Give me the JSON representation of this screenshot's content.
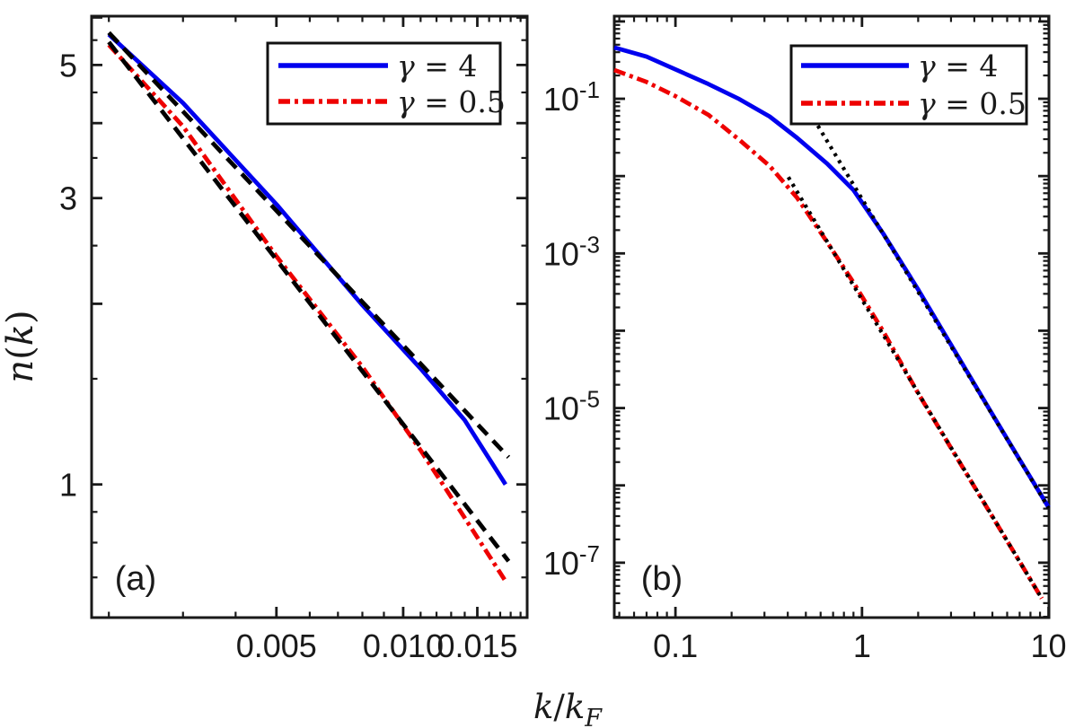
{
  "figure": {
    "xlabel": "k/k_F",
    "background": "#ffffff",
    "axis_color": "#191919",
    "text_color": "#1a1a1a"
  },
  "legend": {
    "entries": [
      {
        "label": "γ = 4",
        "series": "gamma-4",
        "color": "#0000ee",
        "style": "solid"
      },
      {
        "label": "γ = 0.5",
        "series": "gamma-0.5",
        "color": "#ee0000",
        "style": "dashdot"
      }
    ]
  },
  "chart_data": [
    {
      "type": "line",
      "panel_label": "(a)",
      "ylabel": "n(k)",
      "xscale": "log",
      "yscale": "log",
      "xlim": [
        0.00182,
        0.0197
      ],
      "ylim": [
        0.6,
        6.03
      ],
      "grid": false,
      "legend_position": "top-right-inside",
      "xticks_major": [
        0.005,
        0.01,
        0.015
      ],
      "xtick_labels": [
        "0.005",
        "0.010",
        "0.015"
      ],
      "xticks_minor": [
        0.002,
        0.003,
        0.004,
        0.006,
        0.007,
        0.008,
        0.009,
        0.011,
        0.012,
        0.013,
        0.014,
        0.016,
        0.017,
        0.018,
        0.019
      ],
      "yticks_labeled": [
        {
          "v": 1,
          "label": "1"
        },
        {
          "v": 3,
          "label": "3"
        },
        {
          "v": 5,
          "label": "5"
        }
      ],
      "yticks_unlabeled": [
        2,
        4,
        6
      ],
      "yticks_minor": [
        0.7,
        0.8,
        0.9,
        1.5,
        2.5,
        3.5,
        4.5,
        5.5
      ],
      "series": [
        {
          "name": "gamma-4",
          "color": "#0000ee",
          "style": "solid",
          "width": 4.8,
          "x": [
            0.002,
            0.003,
            0.005,
            0.008,
            0.011,
            0.014,
            0.0175
          ],
          "y": [
            5.62,
            4.32,
            2.93,
            1.99,
            1.56,
            1.28,
            1.0
          ]
        },
        {
          "name": "gamma-0.5",
          "color": "#ee0000",
          "style": "dashdot",
          "width": 4.8,
          "x": [
            0.002,
            0.003,
            0.005,
            0.008,
            0.011,
            0.014,
            0.0175
          ],
          "y": [
            5.4,
            3.95,
            2.4,
            1.57,
            1.14,
            0.88,
            0.69
          ]
        },
        {
          "name": "asymptote-gamma-4",
          "color": "#000000",
          "style": "dashed",
          "width": 4.8,
          "x": [
            0.002,
            0.0178
          ],
          "y": [
            5.66,
            1.11
          ]
        },
        {
          "name": "asymptote-gamma-0.5",
          "color": "#000000",
          "style": "dashed",
          "width": 4.8,
          "x": [
            0.002,
            0.0178
          ],
          "y": [
            5.46,
            0.745
          ]
        }
      ]
    },
    {
      "type": "line",
      "panel_label": "(b)",
      "ylabel": "",
      "xscale": "log",
      "yscale": "log",
      "xlim": [
        0.047,
        10.05
      ],
      "ylim": [
        1.95e-08,
        1.17
      ],
      "grid": false,
      "legend_position": "top-right-inside",
      "xticks_major": [
        0.1,
        1,
        10
      ],
      "xtick_labels": [
        "0.1",
        "1",
        "10"
      ],
      "xticks_minor": [
        0.05,
        0.06,
        0.07,
        0.08,
        0.09,
        0.2,
        0.3,
        0.4,
        0.5,
        0.6,
        0.7,
        0.8,
        0.9,
        2,
        3,
        4,
        5,
        6,
        7,
        8,
        9
      ],
      "yticks_labeled": [
        {
          "v": 0.1,
          "base": "10",
          "sup": "-1"
        },
        {
          "v": 0.001,
          "base": "10",
          "sup": "-3"
        },
        {
          "v": 1e-05,
          "base": "10",
          "sup": "-5"
        },
        {
          "v": 1e-07,
          "base": "10",
          "sup": "-7"
        }
      ],
      "yticks_unlabeled": [
        1,
        0.01,
        0.0001,
        1e-06
      ],
      "yticks_minor_decades": [
        -8,
        -1
      ],
      "series": [
        {
          "name": "gamma-4",
          "color": "#0000ee",
          "style": "solid",
          "width": 4.8,
          "x": [
            0.047,
            0.07,
            0.1,
            0.15,
            0.22,
            0.32,
            0.45,
            0.65,
            0.9,
            1.3,
            2,
            3,
            5,
            7,
            10
          ],
          "y": [
            0.46,
            0.35,
            0.24,
            0.155,
            0.099,
            0.059,
            0.031,
            0.0145,
            0.0066,
            0.0018,
            0.00034,
            6.6e-05,
            8.3e-06,
            2.15e-06,
            5.2e-07
          ]
        },
        {
          "name": "gamma-0.5",
          "color": "#ee0000",
          "style": "dashdot",
          "width": 4.8,
          "x": [
            0.047,
            0.07,
            0.1,
            0.15,
            0.22,
            0.32,
            0.45,
            0.65,
            0.9,
            1.3,
            2,
            3,
            5,
            7,
            9.2
          ],
          "y": [
            0.235,
            0.165,
            0.108,
            0.062,
            0.0295,
            0.0135,
            0.0052,
            0.0014,
            0.00042,
            9.8e-05,
            1.55e-05,
            3.05e-06,
            3.95e-07,
            1.03e-07,
            3.45e-08
          ]
        },
        {
          "name": "asymptote-k4-gamma-4",
          "color": "#000000",
          "style": "dotted",
          "width": 4.2,
          "x": [
            0.58,
            10
          ],
          "y": [
            0.0448,
            5.1e-07
          ]
        },
        {
          "name": "asymptote-k4-gamma-0.5",
          "color": "#000000",
          "style": "dotted",
          "width": 4.2,
          "x": [
            0.403,
            9.2
          ],
          "y": [
            0.0097,
            3.45e-08
          ]
        }
      ]
    }
  ]
}
